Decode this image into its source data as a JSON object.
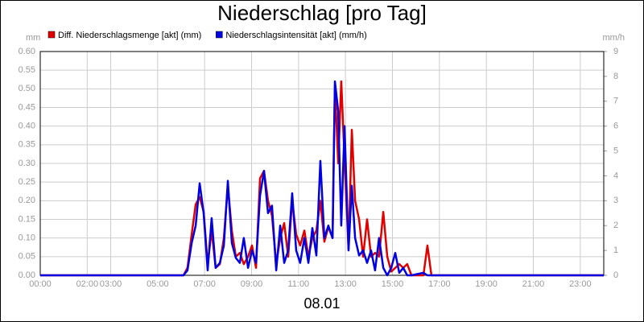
{
  "chart_data": {
    "type": "line",
    "title": "Niederschlag [pro Tag]",
    "xlabel": "08.01",
    "ylabel": "mm",
    "y2label": "mm/h",
    "grid": true,
    "legend": "top-left",
    "x": [
      0,
      6.1,
      6.27,
      6.45,
      6.62,
      6.79,
      6.96,
      7.13,
      7.3,
      7.47,
      7.65,
      7.82,
      7.99,
      8.16,
      8.33,
      8.5,
      8.67,
      8.85,
      9.02,
      9.19,
      9.36,
      9.53,
      9.7,
      9.87,
      10.05,
      10.22,
      10.39,
      10.56,
      10.73,
      10.9,
      11.07,
      11.25,
      11.42,
      11.59,
      11.76,
      11.93,
      12.1,
      12.27,
      12.45,
      12.55,
      12.69,
      12.82,
      12.96,
      13.13,
      13.27,
      13.41,
      13.58,
      13.75,
      13.92,
      14.09,
      14.26,
      14.43,
      14.61,
      14.78,
      14.95,
      15.12,
      15.29,
      15.46,
      15.63,
      15.81,
      16.32,
      16.49,
      16.66,
      24
    ],
    "series": [
      {
        "name": "Diff. Niederschlagsmenge [akt] (mm)",
        "color": "#e00000",
        "values": [
          0,
          0,
          0.02,
          0.11,
          0.19,
          0.21,
          0.17,
          0.03,
          0.12,
          0.02,
          0.03,
          0.1,
          0.24,
          0.12,
          0.05,
          0.06,
          0.03,
          0.05,
          0.08,
          0.02,
          0.26,
          0.28,
          0.2,
          0.16,
          0.03,
          0.1,
          0.14,
          0.05,
          0.2,
          0.11,
          0.08,
          0.12,
          0.05,
          0.1,
          0.12,
          0.2,
          0.09,
          0.13,
          0.1,
          0.51,
          0.3,
          0.52,
          0.31,
          0.07,
          0.39,
          0.2,
          0.15,
          0.05,
          0.15,
          0.05,
          0.06,
          0.05,
          0.17,
          0.05,
          0.01,
          0.02,
          0.03,
          0.02,
          0.03,
          0,
          0,
          0.08,
          0,
          0
        ]
      },
      {
        "name": "Niederschlagsintensität [akt] (mm/h)",
        "color": "#0000e0",
        "axis": "y2",
        "values": [
          0,
          0,
          0.2,
          1.3,
          2.0,
          3.7,
          2.5,
          0.2,
          2.3,
          0.3,
          0.5,
          1.2,
          3.8,
          1.3,
          0.7,
          0.5,
          1.5,
          0.3,
          1.0,
          0.5,
          3.2,
          4.2,
          2.5,
          2.8,
          0.2,
          2.0,
          0.5,
          1.0,
          3.3,
          1.0,
          0.5,
          1.5,
          0.5,
          1.9,
          0.8,
          4.6,
          1.5,
          2.0,
          1.5,
          7.8,
          6.6,
          2.0,
          6.0,
          1.0,
          3.6,
          1.5,
          0.8,
          1.0,
          0.5,
          1.0,
          0.2,
          1.5,
          0.3,
          0,
          0.3,
          0.9,
          0.1,
          0.3,
          0,
          0,
          0.1,
          0,
          0,
          0
        ]
      }
    ],
    "xlim": [
      0,
      24
    ],
    "xticks": [
      {
        "value": 0,
        "label": "00:00"
      },
      {
        "value": 2,
        "label": "02:00"
      },
      {
        "value": 3,
        "label": "03:00"
      },
      {
        "value": 5,
        "label": "05:00"
      },
      {
        "value": 7,
        "label": "07:00"
      },
      {
        "value": 9,
        "label": "09:00"
      },
      {
        "value": 11,
        "label": "11:00"
      },
      {
        "value": 13,
        "label": "13:00"
      },
      {
        "value": 15,
        "label": "15:00"
      },
      {
        "value": 17,
        "label": "17:00"
      },
      {
        "value": 19,
        "label": "19:00"
      },
      {
        "value": 21,
        "label": "21:00"
      },
      {
        "value": 23,
        "label": "23:00"
      }
    ],
    "ylim": [
      0,
      0.6
    ],
    "yticks": [
      {
        "value": 0,
        "label": "0.00"
      },
      {
        "value": 0.05,
        "label": "0.05"
      },
      {
        "value": 0.1,
        "label": "0.10"
      },
      {
        "value": 0.15,
        "label": "0.15"
      },
      {
        "value": 0.2,
        "label": "0.20"
      },
      {
        "value": 0.25,
        "label": "0.25"
      },
      {
        "value": 0.3,
        "label": "0.30"
      },
      {
        "value": 0.35,
        "label": "0.35"
      },
      {
        "value": 0.4,
        "label": "0.40"
      },
      {
        "value": 0.45,
        "label": "0.45"
      },
      {
        "value": 0.5,
        "label": "0.50"
      },
      {
        "value": 0.55,
        "label": "0.55"
      },
      {
        "value": 0.6,
        "label": "0.60"
      }
    ],
    "y2lim": [
      0,
      9
    ],
    "y2ticks": [
      0,
      1,
      2,
      3,
      4,
      5,
      6,
      7,
      8,
      9
    ]
  }
}
